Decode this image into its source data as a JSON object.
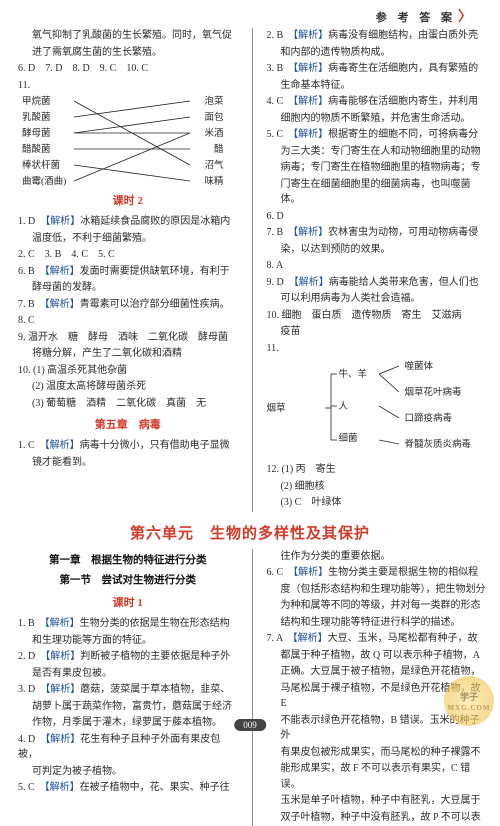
{
  "header": {
    "title": "参 考 答 案"
  },
  "upper": {
    "left": {
      "pre": [
        "氧气抑制了乳酸菌的生长繁殖。同时，氧气促",
        "进了需氧腐生菌的生长繁殖。"
      ],
      "row6_10": "6. D　7. D　8. D　9. C　10. C",
      "q11": "11. ",
      "diagram": {
        "left": [
          "甲烷菌",
          "乳酸菌",
          "酵母菌",
          "醋酸菌",
          "棒状杆菌",
          "曲霉(酒曲)"
        ],
        "right": [
          "泡菜",
          "面包",
          "米酒",
          "醋",
          "沼气",
          "味精"
        ]
      },
      "kt2": "课时 2",
      "kt2_lines": [
        {
          "t": "1. D　",
          "hl": "【解析】",
          "rest": "冰箱延续食品腐败的原因是冰箱内"
        },
        {
          "t": "",
          "rest": "温度低，不利于细菌繁殖。",
          "indent": true
        },
        {
          "t": "2. C　3. B　4. C　5. C"
        },
        {
          "t": "6. B　",
          "hl": "【解析】",
          "rest": "发面时需要提供缺氧环境，有利于"
        },
        {
          "t": "",
          "rest": "酵母菌的发酵。",
          "indent": true
        },
        {
          "t": "7. B　",
          "hl": "【解析】",
          "rest": "青霉素可以治疗部分细菌性疾病。"
        },
        {
          "t": "8. C"
        },
        {
          "t": "9. 温开水　糖　酵母　酒味　二氧化碳　酵母菌"
        },
        {
          "t": "",
          "rest": "将糖分解，产生了二氧化碳和酒精",
          "indent": true
        },
        {
          "t": "10. (1) 高温杀死其他杂菌"
        },
        {
          "t": "",
          "rest": "(2) 温度太高将酵母菌杀死",
          "indent": true
        },
        {
          "t": "",
          "rest": "(3) 葡萄糖　酒精　二氧化碳　真菌　无",
          "indent": true
        }
      ],
      "ch5": "第五章　病毒",
      "ch5_lines": [
        {
          "t": "1. C　",
          "hl": "【解析】",
          "rest": "病毒十分微小，只有借助电子显微"
        },
        {
          "t": "",
          "rest": "镜才能看到。",
          "indent": true
        }
      ]
    },
    "right": {
      "lines": [
        {
          "t": "2. B　",
          "hl": "【解析】",
          "rest": "病毒没有细胞结构，由蛋白质外壳"
        },
        {
          "t": "",
          "rest": "和内部的遗传物质构成。",
          "indent": true
        },
        {
          "t": "3. B　",
          "hl": "【解析】",
          "rest": "病毒寄生在活细胞内，具有繁殖的"
        },
        {
          "t": "",
          "rest": "生命基本特征。",
          "indent": true
        },
        {
          "t": "4. C　",
          "hl": "【解析】",
          "rest": "病毒能够在活细胞内寄生，并利用"
        },
        {
          "t": "",
          "rest": "细胞内的物质不断繁殖，并危害生命活动。",
          "indent": true
        },
        {
          "t": "5. C　",
          "hl": "【解析】",
          "rest": "根据寄生的细胞不同，可将病毒分"
        },
        {
          "t": "",
          "rest": "为三大类：专门寄生在人和动物细胞里的动物",
          "indent": true
        },
        {
          "t": "",
          "rest": "病毒；专门寄生在植物细胞里的植物病毒；专",
          "indent": true
        },
        {
          "t": "",
          "rest": "门寄生在细菌细胞里的细菌病毒，也叫噬菌体。",
          "indent": true
        },
        {
          "t": "6. D"
        },
        {
          "t": "7. B　",
          "hl": "【解析】",
          "rest": "农林害虫为动物，可用动物病毒侵"
        },
        {
          "t": "",
          "rest": "染，以达到预防的效果。",
          "indent": true
        },
        {
          "t": "8. A"
        },
        {
          "t": "9. D　",
          "hl": "【解析】",
          "rest": "病毒能给人类带来危害，但人们也"
        },
        {
          "t": "",
          "rest": "可以利用病毒为人类社会造福。",
          "indent": true
        },
        {
          "t": "10. 细胞　蛋白质　遗传物质　寄生　艾滋病"
        },
        {
          "t": "",
          "rest": "疫苗",
          "indent": true
        },
        {
          "t": "11."
        }
      ],
      "tree": {
        "root": "烟草",
        "mid": [
          "牛、羊",
          "人",
          "细菌"
        ],
        "right": [
          "噬菌体",
          "烟草花叶病毒",
          "口蹄疫病毒",
          "脊髓灰质炎病毒"
        ]
      },
      "after_tree": [
        {
          "t": "12. (1) 丙　寄生"
        },
        {
          "t": "",
          "rest": "(2) 细胞核",
          "indent": true
        },
        {
          "t": "",
          "rest": "(3) C　叶绿体",
          "indent": true
        }
      ]
    }
  },
  "unit6": "第六单元　生物的多样性及其保护",
  "lower": {
    "left": {
      "h1": "第一章　根据生物的特征进行分类",
      "h2": "第一节　尝试对生物进行分类",
      "kt1": "课时 1",
      "lines": [
        {
          "t": "1. B　",
          "hl": "【解析】",
          "rest": "生物分类的依据是生物在形态结构"
        },
        {
          "t": "",
          "rest": "和生理功能等方面的特征。",
          "indent": true
        },
        {
          "t": "2. D　",
          "hl": "【解析】",
          "rest": "判断被子植物的主要依据是种子外"
        },
        {
          "t": "",
          "rest": "是否有果皮包被。",
          "indent": true
        },
        {
          "t": "3. D　",
          "hl": "【解析】",
          "rest": "蘑菇，菠菜属于草本植物，韭菜、"
        },
        {
          "t": "",
          "rest": "胡萝卜属于蔬菜作物，富贵竹，蘑菇属于经济",
          "indent": true
        },
        {
          "t": "",
          "rest": "作物，月季属于灌木，绿萝属于藤本植物。",
          "indent": true
        },
        {
          "t": "4. D　",
          "hl": "【解析】",
          "rest": "花生有种子且种子外面有果皮包被，"
        },
        {
          "t": "",
          "rest": "可判定为被子植物。",
          "indent": true
        },
        {
          "t": "5. C　",
          "hl": "【解析】",
          "rest": "在被子植物中，花、果实、种子往"
        }
      ]
    },
    "right": {
      "lines": [
        {
          "t": "",
          "rest": "往作为分类的重要依据。",
          "indent": true
        },
        {
          "t": "6. C　",
          "hl": "【解析】",
          "rest": "生物分类主要是根据生物的相似程"
        },
        {
          "t": "",
          "rest": "度（包括形态结构和生理功能等），把生物划分",
          "indent": true
        },
        {
          "t": "",
          "rest": "为种和属等不同的等级，并对每一类群的形态",
          "indent": true
        },
        {
          "t": "",
          "rest": "结构和生理功能等特征进行科学的描述。",
          "indent": true
        },
        {
          "t": "7. A　",
          "hl": "【解析】",
          "rest": "大豆、玉米，马尾松都有种子，故"
        },
        {
          "t": "",
          "rest": "都属于种子植物，故 Q 可以表示种子植物，A",
          "indent": true
        },
        {
          "t": "",
          "rest": "正确。大豆属于被子植物，是绿色开花植物，",
          "indent": true
        },
        {
          "t": "",
          "rest": "马尾松属于裸子植物，不是绿色开花植物，故 E",
          "indent": true
        },
        {
          "t": "",
          "rest": "不能表示绿色开花植物，B 错误。玉米的种子外",
          "indent": true
        },
        {
          "t": "",
          "rest": "有果皮包被形成果实，而马尾松的种子裸露不",
          "indent": true
        },
        {
          "t": "",
          "rest": "能形成果实，故 F 不可以表示有果实，C 错误。",
          "indent": true
        },
        {
          "t": "",
          "rest": "玉米是单子叶植物，种子中有胚乳，大豆属于",
          "indent": true
        },
        {
          "t": "",
          "rest": "双子叶植物，种子中没有胚乳，故 P 不可以表",
          "indent": true
        }
      ]
    }
  },
  "pagenum": "009",
  "watermark": {
    "t1": "学子",
    "t2": "MXG.COM"
  }
}
